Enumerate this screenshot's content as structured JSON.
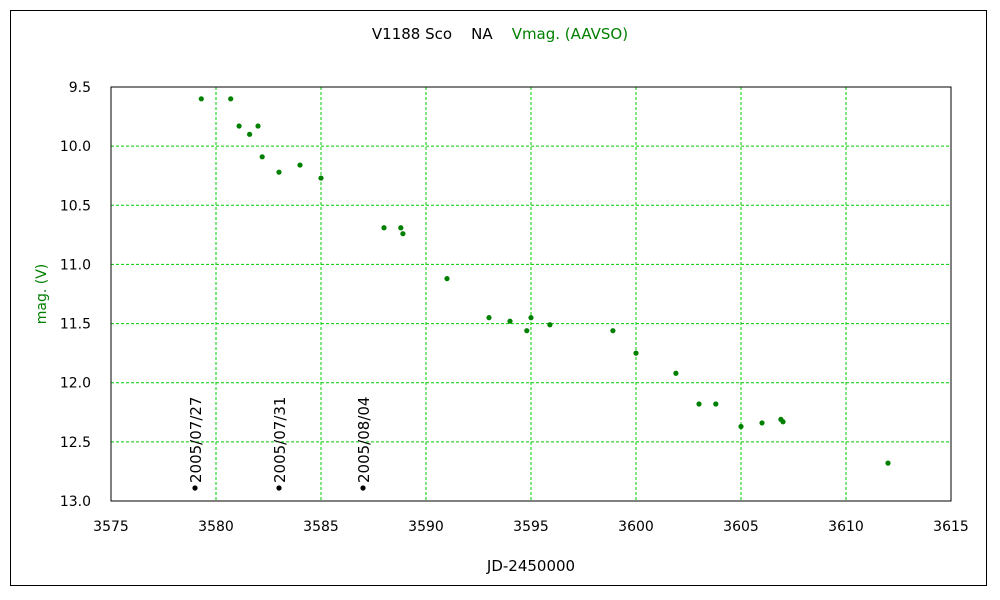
{
  "chart_data": {
    "type": "scatter",
    "title": "V1188 Sco",
    "subtitle_label": "NA",
    "source_label": "Vmag. (AAVSO)",
    "xlabel": "JD-2450000",
    "ylabel": "mag. (V)",
    "xlim": [
      3575,
      3615
    ],
    "ylim": [
      9.5,
      13.0
    ],
    "y_inverted": true,
    "grid": true,
    "grid_color": "#00cc00",
    "x_ticks": [
      "3575",
      "3580",
      "3585",
      "3590",
      "3595",
      "3600",
      "3605",
      "3610",
      "3615"
    ],
    "y_ticks": [
      "9.5",
      "10.0",
      "10.5",
      "11.0",
      "11.5",
      "12.0",
      "12.5",
      "13.0"
    ],
    "series": [
      {
        "color": "#008000",
        "points": [
          {
            "x": 3579.3,
            "y": 9.6
          },
          {
            "x": 3580.7,
            "y": 9.6
          },
          {
            "x": 3581.1,
            "y": 9.83
          },
          {
            "x": 3581.6,
            "y": 9.9
          },
          {
            "x": 3582.0,
            "y": 9.83
          },
          {
            "x": 3582.2,
            "y": 10.09
          },
          {
            "x": 3583.0,
            "y": 10.22
          },
          {
            "x": 3584.0,
            "y": 10.16
          },
          {
            "x": 3585.0,
            "y": 10.27
          },
          {
            "x": 3588.0,
            "y": 10.69
          },
          {
            "x": 3588.8,
            "y": 10.69
          },
          {
            "x": 3588.9,
            "y": 10.74
          },
          {
            "x": 3591.0,
            "y": 11.12
          },
          {
            "x": 3593.0,
            "y": 11.45
          },
          {
            "x": 3594.0,
            "y": 11.48
          },
          {
            "x": 3594.8,
            "y": 11.56
          },
          {
            "x": 3595.0,
            "y": 11.45
          },
          {
            "x": 3595.9,
            "y": 11.51
          },
          {
            "x": 3598.9,
            "y": 11.56
          },
          {
            "x": 3600.0,
            "y": 11.75
          },
          {
            "x": 3601.9,
            "y": 11.92
          },
          {
            "x": 3603.0,
            "y": 12.18
          },
          {
            "x": 3603.8,
            "y": 12.18
          },
          {
            "x": 3605.0,
            "y": 12.37
          },
          {
            "x": 3606.0,
            "y": 12.34
          },
          {
            "x": 3606.9,
            "y": 12.31
          },
          {
            "x": 3607.0,
            "y": 12.33
          },
          {
            "x": 3612.0,
            "y": 12.68
          }
        ]
      }
    ],
    "annotations": [
      {
        "label": "2005/07/27",
        "x": 3579.0,
        "y": 12.89
      },
      {
        "label": "2005/07/31",
        "x": 3583.0,
        "y": 12.89
      },
      {
        "label": "2005/08/04",
        "x": 3587.0,
        "y": 12.89
      }
    ]
  }
}
